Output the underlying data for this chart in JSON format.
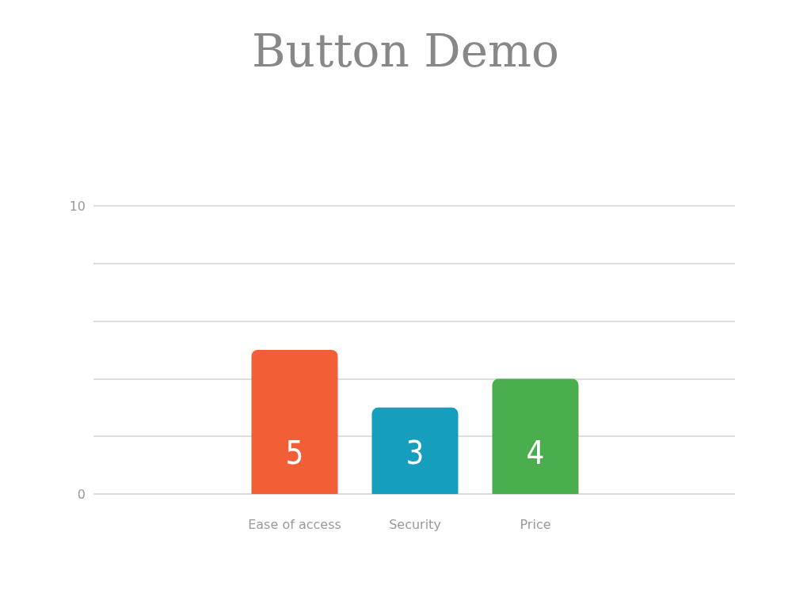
{
  "chart_data": {
    "type": "bar",
    "title": "Button Demo",
    "categories": [
      "Ease of access",
      "Security",
      "Price"
    ],
    "values": [
      5,
      3,
      4
    ],
    "colors": [
      "#f05f35",
      "#159fbd",
      "#4aae4e"
    ],
    "data_labels": true,
    "ylim": [
      0,
      10
    ],
    "yticks": [
      0,
      {
        "value": 2,
        "label": null
      },
      {
        "value": 4,
        "label": null
      },
      {
        "value": 6,
        "label": null
      },
      {
        "value": 8,
        "label": null
      },
      10
    ],
    "grid": "y"
  }
}
